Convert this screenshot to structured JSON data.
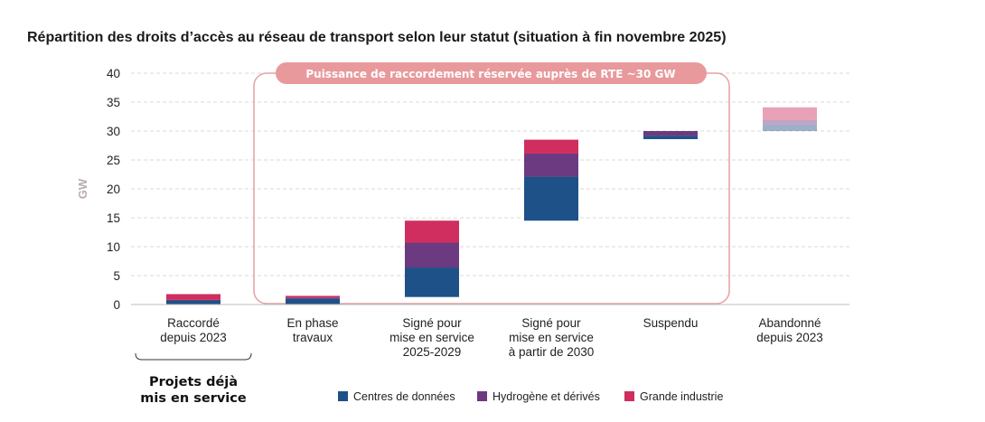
{
  "chart_data": {
    "type": "bar",
    "subtype": "waterfall-stacked",
    "title": "Répartition des droits d’accès au réseau de transport selon leur statut (situation à fin novembre 2025)",
    "xlabel": "",
    "ylabel": "GW",
    "ylim": [
      0,
      40
    ],
    "yticks": [
      0,
      5,
      10,
      15,
      20,
      25,
      30,
      35,
      40
    ],
    "grid": true,
    "categories": [
      [
        "Raccordé",
        "depuis 2023"
      ],
      [
        "En phase",
        "travaux"
      ],
      [
        "Signé pour",
        "mise en service",
        "2025-2029"
      ],
      [
        "Signé pour",
        "mise en service",
        "à partir de 2030"
      ],
      [
        "Suspendu"
      ],
      [
        "Abandonné",
        "depuis 2023"
      ]
    ],
    "bases": [
      0,
      0.1,
      1.3,
      14.5,
      28.6,
      30.0
    ],
    "series": [
      {
        "name": "Centres de données",
        "color": "#1e5187",
        "values": [
          0.7,
          0.9,
          5.1,
          7.6,
          0.6,
          1.0
        ]
      },
      {
        "name": "Hydrogène et dérivés",
        "color": "#6c3a80",
        "values": [
          0.1,
          0.2,
          4.3,
          4.0,
          0.8,
          0.9
        ]
      },
      {
        "name": "Grande industrie",
        "color": "#cf2e5f",
        "values": [
          1.0,
          0.3,
          3.8,
          2.4,
          0.0,
          2.2
        ]
      }
    ],
    "faded_categories": [
      5
    ],
    "annotations": {
      "banner": "Puissance de raccordement réservée auprès de RTE ~30 GW",
      "group_label": [
        "Projets déjà",
        "mis en service"
      ]
    },
    "legend_position": "bottom"
  }
}
